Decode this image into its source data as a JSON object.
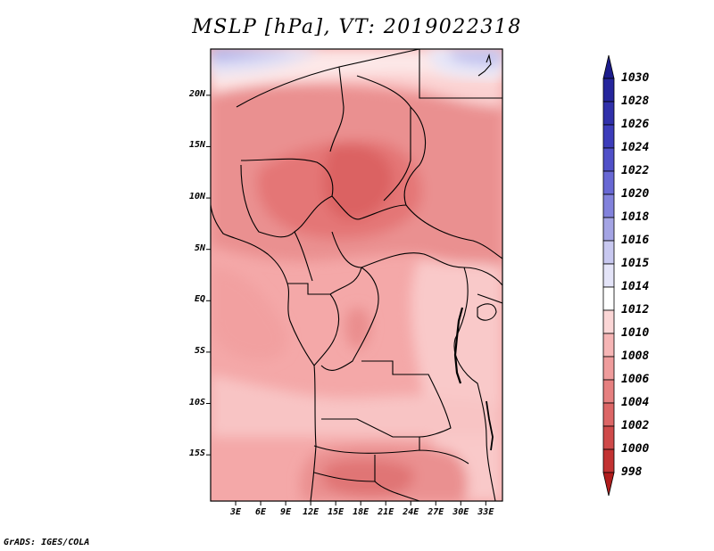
{
  "title": "MSLP [hPa], VT: 2019022318",
  "variable": "MSLP",
  "units": "hPa",
  "valid_time": "2019022318",
  "map": {
    "lat_labels": [
      "20N",
      "15N",
      "10N",
      "5N",
      "EQ",
      "5S",
      "10S",
      "15S"
    ],
    "lat_values": [
      20,
      15,
      10,
      5,
      0,
      -5,
      -10,
      -15
    ],
    "lon_labels": [
      "3E",
      "6E",
      "9E",
      "12E",
      "15E",
      "18E",
      "21E",
      "24E",
      "27E",
      "30E",
      "33E"
    ],
    "lon_values": [
      3,
      6,
      9,
      12,
      15,
      18,
      21,
      24,
      27,
      30,
      33
    ],
    "lat_range": [
      -19.5,
      24.5
    ],
    "lon_range": [
      0,
      35
    ]
  },
  "colorbar": {
    "labels": [
      "1030",
      "1028",
      "1026",
      "1024",
      "1022",
      "1020",
      "1018",
      "1016",
      "1015",
      "1014",
      "1012",
      "1010",
      "1008",
      "1006",
      "1004",
      "1002",
      "1000",
      "998"
    ],
    "colors": [
      "#1c1c8c",
      "#25259c",
      "#3030aa",
      "#3c3cba",
      "#5050c8",
      "#6868d4",
      "#8282dc",
      "#a4a4e4",
      "#c8c8f0",
      "#e4e4f8",
      "#ffffff",
      "#fbd6d6",
      "#f6b5b5",
      "#ef9c9c",
      "#e68080",
      "#dc6666",
      "#cf4a4a",
      "#c23232",
      "#b01c1c"
    ]
  },
  "credit": "GrADS: IGES/COLA"
}
